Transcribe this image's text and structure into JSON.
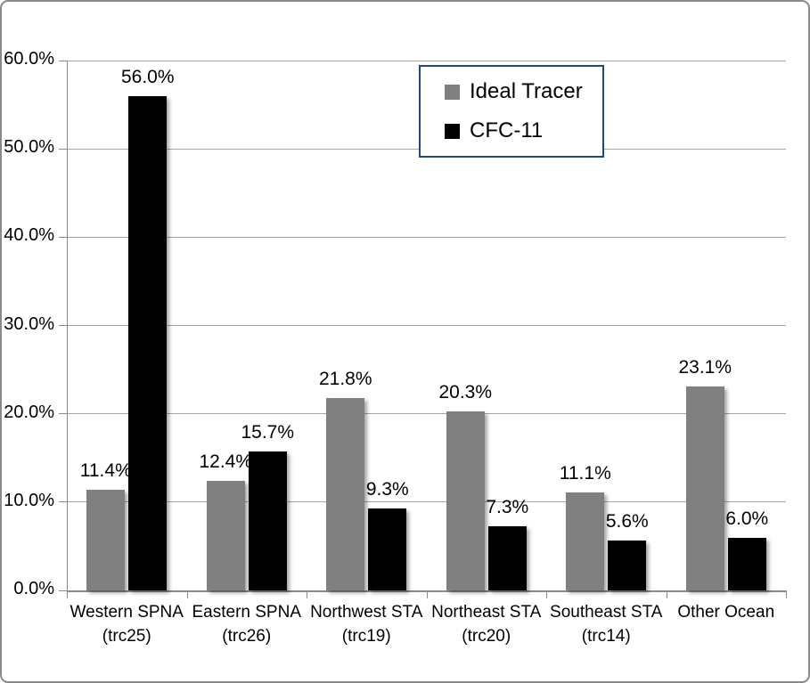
{
  "chart_data": {
    "type": "bar",
    "title": "",
    "xlabel": "",
    "ylabel": "",
    "categories": [
      [
        "Western SPNA",
        "(trc25)"
      ],
      [
        "Eastern SPNA",
        "(trc26)"
      ],
      [
        "Northwest STA",
        "(trc19)"
      ],
      [
        "Northeast STA",
        "(trc20)"
      ],
      [
        "Southeast STA",
        "(trc14)"
      ],
      [
        "Other Ocean"
      ]
    ],
    "series": [
      {
        "name": "Ideal Tracer",
        "color": "#808080",
        "values": [
          11.4,
          12.4,
          21.8,
          20.3,
          11.1,
          23.1
        ],
        "labels": [
          "11.4%",
          "12.4%",
          "21.8%",
          "20.3%",
          "11.1%",
          "23.1%"
        ]
      },
      {
        "name": "CFC-11",
        "color": "#000000",
        "values": [
          56.0,
          15.7,
          9.3,
          7.3,
          5.6,
          6.0
        ],
        "labels": [
          "56.0%",
          "15.7%",
          "9.3%",
          "7.3%",
          "5.6%",
          "6.0%"
        ]
      }
    ],
    "y_axis": {
      "min": 0,
      "max": 60,
      "step": 10,
      "tick_values": [
        0,
        10,
        20,
        30,
        40,
        50,
        60
      ],
      "tick_labels": [
        "0.0%",
        "10.0%",
        "20.0%",
        "30.0%",
        "40.0%",
        "50.0%",
        "60.0%"
      ]
    },
    "grid": true,
    "legend_position": "top-center-inside"
  },
  "colors": {
    "gridline": "#a6a6a6",
    "axis": "#898989",
    "legend_border": "#1F497D",
    "frame_border": "#8a8a8a",
    "background": "#ffffff"
  }
}
